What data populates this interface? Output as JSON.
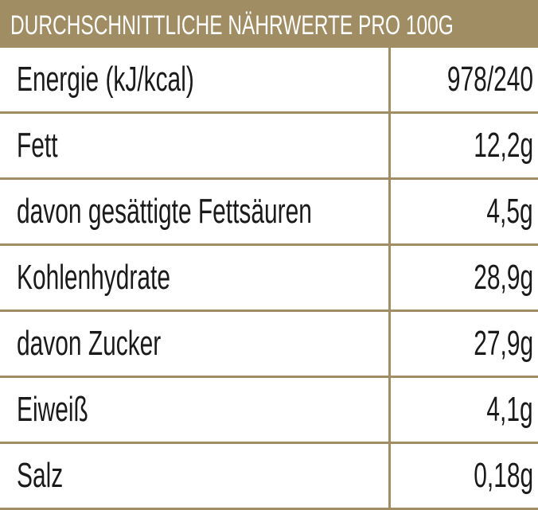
{
  "header": {
    "title": "DURCHSCHNITTLICHE NÄHRWERTE PRO 100G"
  },
  "rows": [
    {
      "label": "Energie (kJ/kcal)",
      "value": "978/240"
    },
    {
      "label": "Fett",
      "value": "12,2g"
    },
    {
      "label": "davon gesättigte Fettsäuren",
      "value": "4,5g"
    },
    {
      "label": "Kohlenhydrate",
      "value": "28,9g"
    },
    {
      "label": "davon Zucker",
      "value": "27,9g"
    },
    {
      "label": "Eiweiß",
      "value": "4,1g"
    },
    {
      "label": "Salz",
      "value": "0,18g"
    }
  ],
  "colors": {
    "accent": "#a08d64",
    "text": "#1a1a1a",
    "background": "#ffffff"
  }
}
